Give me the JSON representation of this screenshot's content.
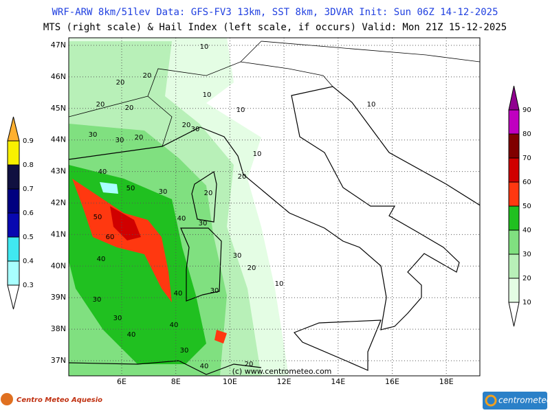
{
  "header": {
    "line1": "WRF-ARW 8km/51lev  Data: GFS-FV3 13km, SST 8km, 3DVAR   Init: Sun 06Z 14-12-2025",
    "line2": "MTS (right scale) & Hail Index (left scale, if occurs) Valid: Mon 21Z 15-12-2025"
  },
  "map": {
    "lat_labels": [
      "47N",
      "46N",
      "45N",
      "44N",
      "43N",
      "42N",
      "41N",
      "40N",
      "39N",
      "38N",
      "37N"
    ],
    "lon_labels": [
      "6E",
      "8E",
      "10E",
      "12E",
      "14E",
      "16E",
      "18E"
    ],
    "watermark": "(c) www.centrometeo.com",
    "contour_labels": [
      10,
      20,
      20,
      10,
      20,
      20,
      10,
      10,
      20,
      30,
      30,
      30,
      20,
      10,
      20,
      40,
      50,
      30,
      20,
      50,
      40,
      30,
      60,
      40,
      30,
      20,
      10,
      40,
      30,
      30,
      30,
      40,
      40,
      30,
      40,
      20
    ]
  },
  "hail_scale": {
    "labels": [
      0.3,
      0.4,
      0.5,
      0.6,
      0.7,
      0.8,
      0.9
    ],
    "colors": [
      "#a8ffff",
      "#40e8f0",
      "#0808b0",
      "#000080",
      "#101040",
      "#f8f000",
      "#ffb030"
    ]
  },
  "mts_scale": {
    "labels": [
      10,
      20,
      30,
      40,
      50,
      60,
      70,
      80,
      90
    ],
    "colors": [
      "#e4fde4",
      "#b8f0b8",
      "#80e080",
      "#20c020",
      "#ff3810",
      "#d00000",
      "#800000",
      "#c000c0",
      "#900090"
    ]
  },
  "footer": {
    "left_logo": "Centro Meteo Aquesio",
    "right_logo": "centrometeo"
  }
}
